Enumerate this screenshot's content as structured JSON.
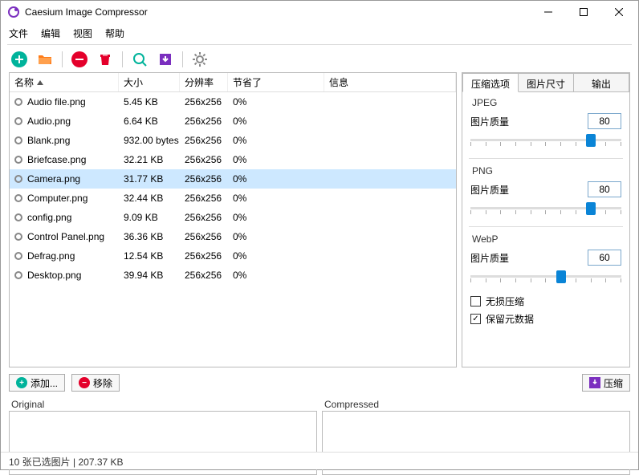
{
  "window": {
    "title": "Caesium Image Compressor"
  },
  "menu": {
    "file": "文件",
    "edit": "编辑",
    "view": "视图",
    "help": "帮助"
  },
  "toolbar": {
    "add": {
      "color": "#00b39b"
    },
    "open": {
      "color": "#ff7b17"
    },
    "remove": {
      "color": "#e4002b"
    },
    "clear": {
      "color": "#e4002b"
    },
    "preview": {
      "color": "#00b39b"
    },
    "compress": {
      "color": "#7b2fbf"
    },
    "settings": {
      "color": "#888888"
    }
  },
  "columns": {
    "name": "名称",
    "size": "大小",
    "resolution": "分辨率",
    "saved": "节省了",
    "info": "信息"
  },
  "files": [
    {
      "name": "Audio file.png",
      "size": "5.45 KB",
      "res": "256x256",
      "saved": "0%",
      "selected": false
    },
    {
      "name": "Audio.png",
      "size": "6.64 KB",
      "res": "256x256",
      "saved": "0%",
      "selected": false
    },
    {
      "name": "Blank.png",
      "size": "932.00 bytes",
      "res": "256x256",
      "saved": "0%",
      "selected": false
    },
    {
      "name": "Briefcase.png",
      "size": "32.21 KB",
      "res": "256x256",
      "saved": "0%",
      "selected": false
    },
    {
      "name": "Camera.png",
      "size": "31.77 KB",
      "res": "256x256",
      "saved": "0%",
      "selected": true
    },
    {
      "name": "Computer.png",
      "size": "32.44 KB",
      "res": "256x256",
      "saved": "0%",
      "selected": false
    },
    {
      "name": "config.png",
      "size": "9.09 KB",
      "res": "256x256",
      "saved": "0%",
      "selected": false
    },
    {
      "name": "Control Panel.png",
      "size": "36.36 KB",
      "res": "256x256",
      "saved": "0%",
      "selected": false
    },
    {
      "name": "Defrag.png",
      "size": "12.54 KB",
      "res": "256x256",
      "saved": "0%",
      "selected": false
    },
    {
      "name": "Desktop.png",
      "size": "39.94 KB",
      "res": "256x256",
      "saved": "0%",
      "selected": false
    }
  ],
  "tabs": {
    "compress": "压缩选项",
    "size": "图片尺寸",
    "output": "输出",
    "active": 0
  },
  "quality_label": "图片质量",
  "jpeg": {
    "title": "JPEG",
    "quality": 80
  },
  "png": {
    "title": "PNG",
    "quality": 80
  },
  "webp": {
    "title": "WebP",
    "quality": 60
  },
  "lossless": {
    "label": "无损压缩",
    "checked": false
  },
  "keepmeta": {
    "label": "保留元数据",
    "checked": true
  },
  "buttons": {
    "add": "添加...",
    "remove": "移除",
    "compress": "压缩"
  },
  "preview": {
    "orig": "Original",
    "comp": "Compressed"
  },
  "status": "10 张已选图片 | 207.37 KB",
  "colors": {
    "selection": "#cde8ff",
    "accent": "#0a84d6"
  }
}
